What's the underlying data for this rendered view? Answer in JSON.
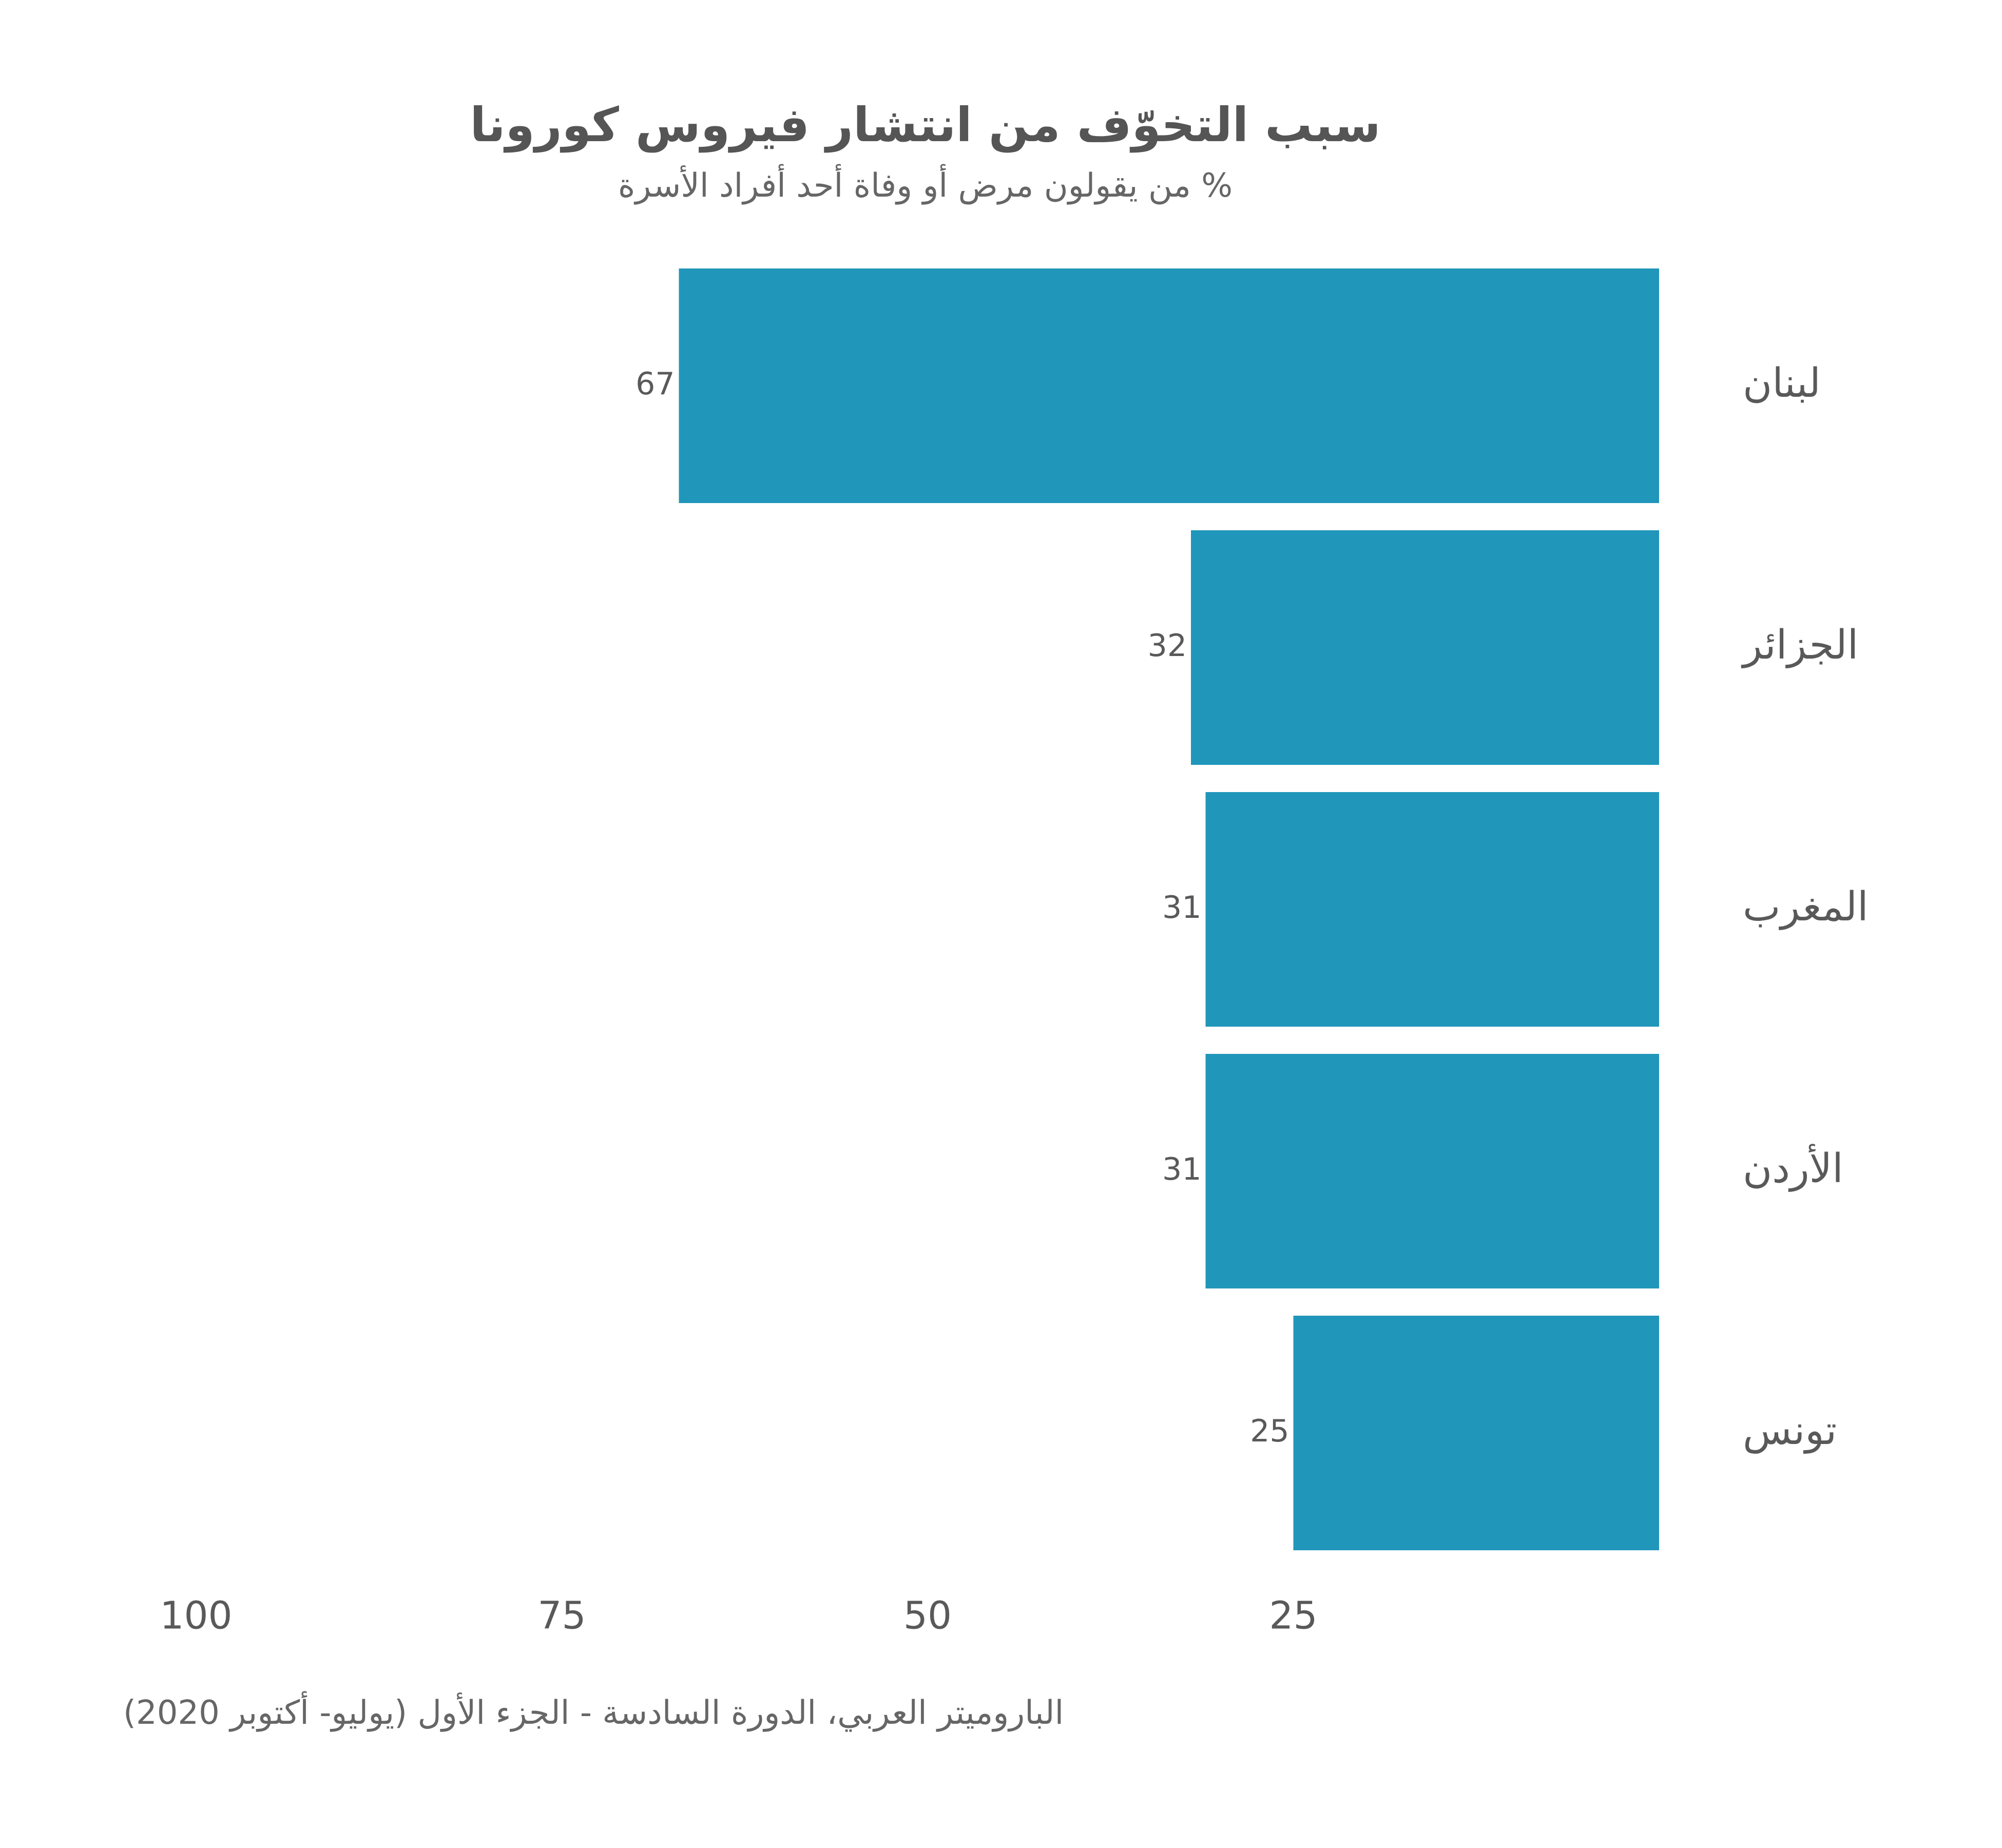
{
  "chart_data": {
    "type": "bar",
    "orientation": "horizontal",
    "direction": "right-to-left",
    "title": "سبب التخوّف من انتشار فيروس كورونا",
    "subtitle": "% من يقولون مرض أو وفاة أحد أفراد الأسرة",
    "caption": "الباروميتر العربي، الدورة السادسة - الجزء الأول (يوليو- أكتوبر 2020)",
    "categories": [
      "لبنان",
      "الجزائر",
      "المغرب",
      "الأردن",
      "تونس"
    ],
    "values": [
      67,
      32,
      31,
      31,
      25
    ],
    "value_labels": [
      "67",
      "32",
      "31",
      "31",
      "25"
    ],
    "x_ticks": [
      100,
      75,
      50,
      25
    ],
    "x_tick_labels": [
      "100",
      "75",
      "50",
      "25"
    ],
    "xlim": [
      0,
      100
    ],
    "grid": false,
    "legend": "none",
    "bar_color": "#2196bb",
    "text_color": "#595959"
  }
}
